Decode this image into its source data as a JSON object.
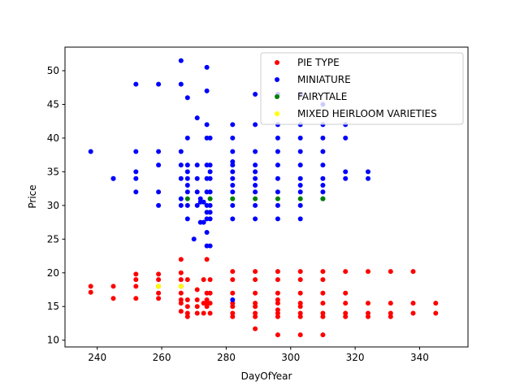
{
  "chart_data": {
    "type": "scatter",
    "title": "",
    "xlabel": "DayOfYear",
    "ylabel": "Price",
    "xlim": [
      230,
      355
    ],
    "ylim": [
      9,
      53.5
    ],
    "xticks": [
      240,
      260,
      280,
      300,
      320,
      340
    ],
    "yticks": [
      10,
      15,
      20,
      25,
      30,
      35,
      40,
      45,
      50
    ],
    "grid": false,
    "legend_position": "upper-right",
    "series": [
      {
        "name": "PIE TYPE",
        "color": "#ff0000",
        "points": [
          [
            238,
            18
          ],
          [
            238,
            17.1
          ],
          [
            245,
            18
          ],
          [
            245,
            16.2
          ],
          [
            252,
            19.8
          ],
          [
            252,
            19
          ],
          [
            252,
            18
          ],
          [
            252,
            16.2
          ],
          [
            259,
            19.8
          ],
          [
            259,
            19
          ],
          [
            259,
            18
          ],
          [
            259,
            17
          ],
          [
            259,
            16.2
          ],
          [
            266,
            22
          ],
          [
            266,
            20
          ],
          [
            266,
            19
          ],
          [
            266,
            18
          ],
          [
            266,
            17
          ],
          [
            266,
            16
          ],
          [
            266,
            15.5
          ],
          [
            266,
            14.3
          ],
          [
            268,
            19
          ],
          [
            268,
            16
          ],
          [
            268,
            15
          ],
          [
            268,
            14
          ],
          [
            268,
            13.5
          ],
          [
            271,
            17.5
          ],
          [
            271,
            16
          ],
          [
            271,
            15
          ],
          [
            271,
            14
          ],
          [
            273,
            19
          ],
          [
            273,
            15.5
          ],
          [
            273,
            14
          ],
          [
            274,
            22
          ],
          [
            274,
            17
          ],
          [
            274,
            16
          ],
          [
            274,
            15.5
          ],
          [
            274,
            15
          ],
          [
            275,
            19
          ],
          [
            275,
            17
          ],
          [
            275,
            15.5
          ],
          [
            275,
            14
          ],
          [
            282,
            20.2
          ],
          [
            282,
            19
          ],
          [
            282,
            17
          ],
          [
            282,
            15.5
          ],
          [
            282,
            15
          ],
          [
            282,
            14
          ],
          [
            282,
            13.5
          ],
          [
            289,
            20.2
          ],
          [
            289,
            19
          ],
          [
            289,
            17
          ],
          [
            289,
            15.5
          ],
          [
            289,
            15
          ],
          [
            289,
            14
          ],
          [
            289,
            13.5
          ],
          [
            289,
            11.7
          ],
          [
            296,
            20.2
          ],
          [
            296,
            19
          ],
          [
            296,
            17
          ],
          [
            296,
            16
          ],
          [
            296,
            15.5
          ],
          [
            296,
            14.5
          ],
          [
            296,
            14
          ],
          [
            296,
            13.5
          ],
          [
            296,
            10.8
          ],
          [
            303,
            20.2
          ],
          [
            303,
            19
          ],
          [
            303,
            17
          ],
          [
            303,
            15.5
          ],
          [
            303,
            15
          ],
          [
            303,
            14
          ],
          [
            303,
            13.5
          ],
          [
            303,
            10.8
          ],
          [
            310,
            20.2
          ],
          [
            310,
            19
          ],
          [
            310,
            17
          ],
          [
            310,
            15.5
          ],
          [
            310,
            14
          ],
          [
            310,
            13.5
          ],
          [
            310,
            10.8
          ],
          [
            317,
            20.2
          ],
          [
            317,
            17
          ],
          [
            317,
            15.5
          ],
          [
            317,
            14
          ],
          [
            317,
            13.5
          ],
          [
            324,
            20.2
          ],
          [
            324,
            15.5
          ],
          [
            324,
            14
          ],
          [
            324,
            13.5
          ],
          [
            331,
            20.2
          ],
          [
            331,
            15.5
          ],
          [
            331,
            14
          ],
          [
            331,
            13.5
          ],
          [
            338,
            20.2
          ],
          [
            338,
            15.5
          ],
          [
            338,
            14
          ],
          [
            345,
            15.5
          ],
          [
            345,
            14
          ]
        ]
      },
      {
        "name": "MINIATURE",
        "color": "#0000ff",
        "points": [
          [
            238,
            38
          ],
          [
            245,
            34
          ],
          [
            245,
            34
          ],
          [
            252,
            48
          ],
          [
            252,
            38
          ],
          [
            252,
            35
          ],
          [
            252,
            34
          ],
          [
            252,
            32
          ],
          [
            259,
            48
          ],
          [
            259,
            38
          ],
          [
            259,
            36
          ],
          [
            259,
            32
          ],
          [
            259,
            30
          ],
          [
            266,
            51.5
          ],
          [
            266,
            48
          ],
          [
            266,
            38
          ],
          [
            266,
            36
          ],
          [
            266,
            34
          ],
          [
            266,
            31
          ],
          [
            266,
            30
          ],
          [
            268,
            46
          ],
          [
            268,
            40
          ],
          [
            268,
            36
          ],
          [
            268,
            35
          ],
          [
            268,
            34
          ],
          [
            268,
            33
          ],
          [
            268,
            32
          ],
          [
            268,
            30
          ],
          [
            268,
            28
          ],
          [
            270,
            25
          ],
          [
            271,
            43
          ],
          [
            271,
            36
          ],
          [
            271,
            34
          ],
          [
            271,
            32
          ],
          [
            271,
            30
          ],
          [
            272,
            31
          ],
          [
            272,
            30.5
          ],
          [
            272,
            27.5
          ],
          [
            273,
            30.5
          ],
          [
            273,
            27.5
          ],
          [
            274,
            50.5
          ],
          [
            274,
            47
          ],
          [
            274,
            42
          ],
          [
            274,
            40
          ],
          [
            274,
            36
          ],
          [
            274,
            34
          ],
          [
            274,
            32
          ],
          [
            274,
            30
          ],
          [
            274,
            29
          ],
          [
            274,
            28
          ],
          [
            274,
            26
          ],
          [
            274,
            24
          ],
          [
            275,
            40
          ],
          [
            275,
            36
          ],
          [
            275,
            35
          ],
          [
            275,
            34
          ],
          [
            275,
            32
          ],
          [
            275,
            30
          ],
          [
            275,
            29
          ],
          [
            275,
            28
          ],
          [
            275,
            24
          ],
          [
            282,
            42
          ],
          [
            282,
            40
          ],
          [
            282,
            38
          ],
          [
            282,
            36.5
          ],
          [
            282,
            36
          ],
          [
            282,
            35
          ],
          [
            282,
            34
          ],
          [
            282,
            33
          ],
          [
            282,
            32
          ],
          [
            282,
            30
          ],
          [
            282,
            28
          ],
          [
            282,
            16
          ],
          [
            289,
            46.5
          ],
          [
            289,
            42
          ],
          [
            289,
            38
          ],
          [
            289,
            36
          ],
          [
            289,
            35
          ],
          [
            289,
            34
          ],
          [
            289,
            33
          ],
          [
            289,
            32
          ],
          [
            289,
            30
          ],
          [
            289,
            28
          ],
          [
            296,
            46.5
          ],
          [
            296,
            42
          ],
          [
            296,
            40
          ],
          [
            296,
            38
          ],
          [
            296,
            36
          ],
          [
            296,
            34
          ],
          [
            296,
            32
          ],
          [
            296,
            30
          ],
          [
            296,
            28
          ],
          [
            303,
            46.5
          ],
          [
            303,
            42
          ],
          [
            303,
            40
          ],
          [
            303,
            38
          ],
          [
            303,
            36
          ],
          [
            303,
            34
          ],
          [
            303,
            33
          ],
          [
            303,
            32
          ],
          [
            303,
            30
          ],
          [
            303,
            28
          ],
          [
            310,
            45
          ],
          [
            310,
            42
          ],
          [
            310,
            40
          ],
          [
            310,
            38
          ],
          [
            310,
            36
          ],
          [
            310,
            34
          ],
          [
            310,
            33
          ],
          [
            310,
            32
          ],
          [
            310,
            31
          ],
          [
            317,
            42
          ],
          [
            317,
            40
          ],
          [
            317,
            35
          ],
          [
            317,
            34
          ],
          [
            324,
            35
          ],
          [
            324,
            34
          ]
        ]
      },
      {
        "name": "FAIRYTALE",
        "color": "#008000",
        "points": [
          [
            268,
            31
          ],
          [
            275,
            31
          ],
          [
            282,
            31
          ],
          [
            289,
            31
          ],
          [
            296,
            31
          ],
          [
            303,
            31
          ],
          [
            310,
            31
          ]
        ]
      },
      {
        "name": "MIXED HEIRLOOM VARIETIES",
        "color": "#ffff00",
        "points": [
          [
            259,
            18
          ],
          [
            266,
            18
          ]
        ]
      }
    ]
  }
}
